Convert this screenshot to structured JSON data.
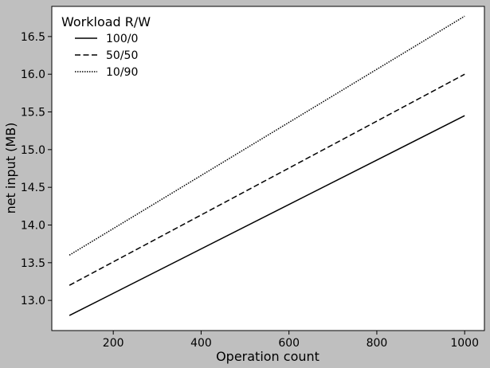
{
  "chart_data": {
    "type": "line",
    "xlabel": "Operation count",
    "ylabel": "net input (MB)",
    "xlim": [
      60,
      1045
    ],
    "ylim": [
      12.6,
      16.9
    ],
    "xticks": [
      200,
      400,
      600,
      800,
      1000
    ],
    "yticks": [
      13.0,
      13.5,
      14.0,
      14.5,
      15.0,
      15.5,
      16.0,
      16.5
    ],
    "grid": false,
    "legend": {
      "title": "Workload R/W",
      "placement": "top-left"
    },
    "series": [
      {
        "name": "100/0",
        "style": "solid",
        "x": [
          100,
          1000
        ],
        "y": [
          12.8,
          15.45
        ]
      },
      {
        "name": "50/50",
        "style": "dashed",
        "x": [
          100,
          1000
        ],
        "y": [
          13.2,
          16.0
        ]
      },
      {
        "name": "10/90",
        "style": "dotted",
        "x": [
          100,
          1000
        ],
        "y": [
          13.6,
          16.77
        ]
      }
    ],
    "colors": {
      "background": "#bfbfbf",
      "plot": "#ffffff",
      "line": "#000000"
    }
  }
}
